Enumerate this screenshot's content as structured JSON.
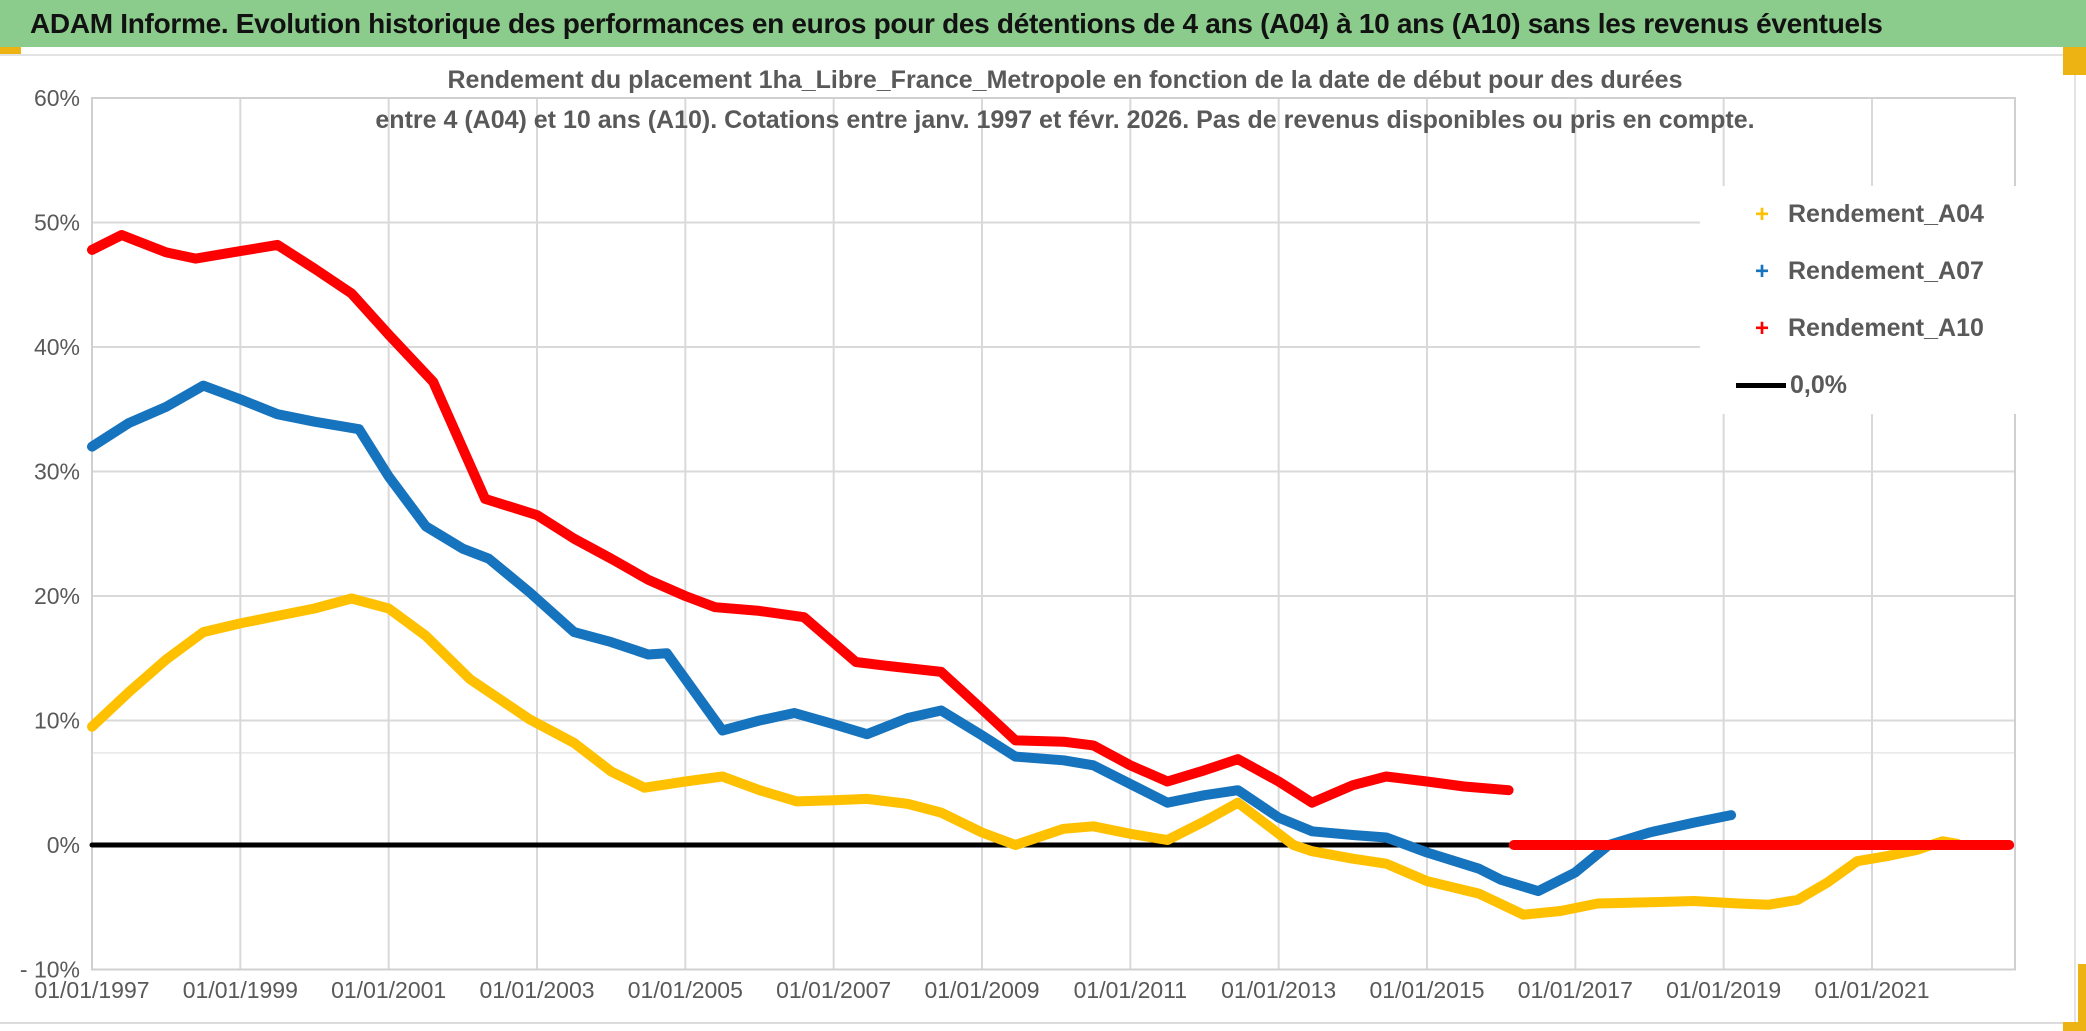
{
  "window": {
    "header_title": "ADAM Informe. Evolution historique des performances en euros pour des détentions de 4 ans (A04) à 10 ans (A10) sans les revenus éventuels",
    "header_bg": "#8BCB8B",
    "accent_color": "#EDB312"
  },
  "chart_data": {
    "type": "line",
    "title_lines": [
      "Rendement du placement 1ha_Libre_France_Metropole en fonction de la date de début pour des durées",
      "entre 4 (A04) et 10 ans (A10). Cotations entre janv. 1997 et févr. 2026. Pas de revenus disponibles ou pris en compte."
    ],
    "grid": true,
    "legend_position": "top-right-inside",
    "x_axis": {
      "tick_labels": [
        "01/01/1997",
        "01/01/1999",
        "01/01/2001",
        "01/01/2003",
        "01/01/2005",
        "01/01/2007",
        "01/01/2009",
        "01/01/2011",
        "01/01/2013",
        "01/01/2015",
        "01/01/2017",
        "01/01/2019",
        "01/01/2021"
      ],
      "tick_years": [
        1997,
        1999,
        2001,
        2003,
        2005,
        2007,
        2009,
        2011,
        2013,
        2015,
        2017,
        2019,
        2021
      ],
      "range": [
        1997,
        2022.95
      ]
    },
    "y_axis": {
      "tick_labels": [
        "60%",
        "50%",
        "40%",
        "30%",
        "20%",
        "10%",
        "0%",
        "- 10%"
      ],
      "tick_values": [
        60,
        50,
        40,
        30,
        20,
        10,
        0,
        -10
      ],
      "range": [
        -10,
        60
      ],
      "unit": "%"
    },
    "extra_faint_line_pct": 7.4,
    "legend": [
      {
        "label": "Rendement_A04",
        "color": "#FFC000",
        "marker": "plus"
      },
      {
        "label": "Rendement_A07",
        "color": "#1673BE",
        "marker": "plus"
      },
      {
        "label": "Rendement_A10",
        "color": "#FE0000",
        "marker": "plus"
      },
      {
        "label": "0,0%",
        "color": "#000000",
        "marker": "line"
      }
    ],
    "series": [
      {
        "name": "zero-reference-line",
        "color": "#000000",
        "width": 5,
        "points": [
          [
            1997.0,
            0.0
          ],
          [
            2016.14,
            0.0
          ]
        ]
      },
      {
        "name": "Rendement_A04",
        "color": "#FFC000",
        "width": 10,
        "points": [
          [
            1997.0,
            9.5
          ],
          [
            1997.5,
            12.3
          ],
          [
            1998.0,
            14.9
          ],
          [
            1998.5,
            17.1
          ],
          [
            1999.0,
            17.8
          ],
          [
            1999.5,
            18.4
          ],
          [
            2000.0,
            19.0
          ],
          [
            2000.5,
            19.8
          ],
          [
            2001.0,
            19.0
          ],
          [
            2001.5,
            16.8
          ],
          [
            2002.1,
            13.3
          ],
          [
            2002.9,
            10.1
          ],
          [
            2003.5,
            8.2
          ],
          [
            2004.0,
            5.9
          ],
          [
            2004.45,
            4.6
          ],
          [
            2005.0,
            5.1
          ],
          [
            2005.5,
            5.5
          ],
          [
            2006.0,
            4.4
          ],
          [
            2006.5,
            3.5
          ],
          [
            2007.0,
            3.6
          ],
          [
            2007.45,
            3.7
          ],
          [
            2008.0,
            3.3
          ],
          [
            2008.45,
            2.6
          ],
          [
            2009.0,
            1.0
          ],
          [
            2009.45,
            0.0
          ],
          [
            2010.1,
            1.3
          ],
          [
            2010.5,
            1.5
          ],
          [
            2011.0,
            0.9
          ],
          [
            2011.5,
            0.4
          ],
          [
            2012.0,
            1.9
          ],
          [
            2012.45,
            3.4
          ],
          [
            2013.2,
            0.0
          ],
          [
            2013.45,
            -0.5
          ],
          [
            2014.0,
            -1.1
          ],
          [
            2014.45,
            -1.5
          ],
          [
            2015.0,
            -2.9
          ],
          [
            2015.7,
            -3.9
          ],
          [
            2016.3,
            -5.6
          ],
          [
            2016.8,
            -5.3
          ],
          [
            2017.3,
            -4.7
          ],
          [
            2018.0,
            -4.6
          ],
          [
            2018.6,
            -4.5
          ],
          [
            2019.2,
            -4.7
          ],
          [
            2019.6,
            -4.8
          ],
          [
            2020.0,
            -4.4
          ],
          [
            2020.4,
            -3.0
          ],
          [
            2020.8,
            -1.3
          ],
          [
            2021.2,
            -0.9
          ],
          [
            2021.6,
            -0.4
          ],
          [
            2021.95,
            0.3
          ],
          [
            2022.15,
            0.1
          ]
        ]
      },
      {
        "name": "Rendement_A07",
        "color": "#1673BE",
        "width": 10,
        "points": [
          [
            1997.0,
            32.0
          ],
          [
            1997.5,
            33.9
          ],
          [
            1998.0,
            35.2
          ],
          [
            1998.5,
            36.9
          ],
          [
            1999.0,
            35.8
          ],
          [
            1999.5,
            34.6
          ],
          [
            2000.0,
            34.0
          ],
          [
            2000.6,
            33.4
          ],
          [
            2001.0,
            29.6
          ],
          [
            2001.5,
            25.6
          ],
          [
            2002.0,
            23.8
          ],
          [
            2002.35,
            23.0
          ],
          [
            2002.9,
            20.3
          ],
          [
            2003.5,
            17.1
          ],
          [
            2004.0,
            16.3
          ],
          [
            2004.5,
            15.3
          ],
          [
            2004.75,
            15.4
          ],
          [
            2005.5,
            9.2
          ],
          [
            2006.0,
            10.0
          ],
          [
            2006.47,
            10.6
          ],
          [
            2007.0,
            9.7
          ],
          [
            2007.45,
            8.9
          ],
          [
            2008.0,
            10.2
          ],
          [
            2008.45,
            10.8
          ],
          [
            2009.0,
            8.8
          ],
          [
            2009.45,
            7.1
          ],
          [
            2010.1,
            6.8
          ],
          [
            2010.5,
            6.4
          ],
          [
            2011.0,
            4.9
          ],
          [
            2011.5,
            3.4
          ],
          [
            2012.0,
            4.0
          ],
          [
            2012.45,
            4.4
          ],
          [
            2013.0,
            2.2
          ],
          [
            2013.45,
            1.1
          ],
          [
            2014.0,
            0.8
          ],
          [
            2014.45,
            0.6
          ],
          [
            2015.0,
            -0.6
          ],
          [
            2015.7,
            -1.9
          ],
          [
            2016.0,
            -2.8
          ],
          [
            2016.5,
            -3.7
          ],
          [
            2017.0,
            -2.2
          ],
          [
            2017.45,
            0.0
          ],
          [
            2018.0,
            1.0
          ],
          [
            2018.6,
            1.8
          ],
          [
            2019.1,
            2.4
          ]
        ]
      },
      {
        "name": "Rendement_A10",
        "color": "#FE0000",
        "width": 10,
        "points": [
          [
            1997.0,
            47.8
          ],
          [
            1997.4,
            49.0
          ],
          [
            1998.0,
            47.6
          ],
          [
            1998.4,
            47.1
          ],
          [
            1999.0,
            47.7
          ],
          [
            1999.5,
            48.2
          ],
          [
            2000.0,
            46.3
          ],
          [
            2000.5,
            44.3
          ],
          [
            2001.0,
            41.0
          ],
          [
            2001.6,
            37.2
          ],
          [
            2002.3,
            27.8
          ],
          [
            2003.0,
            26.5
          ],
          [
            2003.5,
            24.6
          ],
          [
            2004.0,
            23.0
          ],
          [
            2004.5,
            21.3
          ],
          [
            2005.0,
            20.0
          ],
          [
            2005.4,
            19.1
          ],
          [
            2006.0,
            18.8
          ],
          [
            2006.6,
            18.3
          ],
          [
            2007.3,
            14.7
          ],
          [
            2007.7,
            14.4
          ],
          [
            2008.45,
            13.9
          ],
          [
            2009.0,
            10.9
          ],
          [
            2009.45,
            8.4
          ],
          [
            2010.1,
            8.3
          ],
          [
            2010.5,
            8.0
          ],
          [
            2011.0,
            6.4
          ],
          [
            2011.5,
            5.1
          ],
          [
            2012.0,
            6.0
          ],
          [
            2012.45,
            6.9
          ],
          [
            2013.0,
            5.1
          ],
          [
            2013.45,
            3.4
          ],
          [
            2014.0,
            4.8
          ],
          [
            2014.45,
            5.5
          ],
          [
            2015.0,
            5.1
          ],
          [
            2015.5,
            4.7
          ],
          [
            2016.1,
            4.4
          ]
        ]
      },
      {
        "name": "Rendement_A10-zero-tail",
        "color": "#FE0000",
        "width": 10,
        "points": [
          [
            2016.17,
            0.0
          ],
          [
            2022.85,
            0.0
          ]
        ]
      }
    ]
  }
}
